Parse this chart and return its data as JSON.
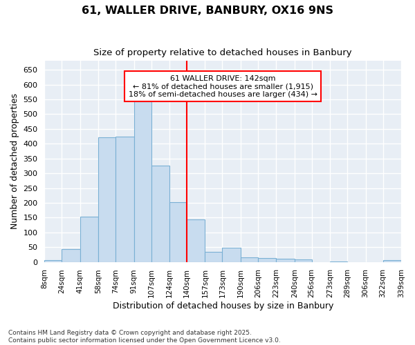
{
  "title": "61, WALLER DRIVE, BANBURY, OX16 9NS",
  "subtitle": "Size of property relative to detached houses in Banbury",
  "xlabel": "Distribution of detached houses by size in Banbury",
  "ylabel": "Number of detached properties",
  "bar_color": "#c8dcef",
  "bar_edge_color": "#7ab0d4",
  "fig_facecolor": "#ffffff",
  "ax_facecolor": "#e8eef5",
  "grid_color": "#ffffff",
  "annotation_text": "61 WALLER DRIVE: 142sqm\n← 81% of detached houses are smaller (1,915)\n18% of semi-detached houses are larger (434) →",
  "vline_x": 140,
  "bin_edges": [
    8,
    24,
    41,
    58,
    74,
    91,
    107,
    124,
    140,
    157,
    173,
    190,
    206,
    223,
    240,
    256,
    273,
    289,
    306,
    322,
    339
  ],
  "bar_heights": [
    7,
    44,
    153,
    421,
    424,
    543,
    325,
    203,
    144,
    33,
    49,
    15,
    13,
    11,
    8,
    0,
    1,
    0,
    0,
    5
  ],
  "ylim": [
    0,
    680
  ],
  "yticks": [
    0,
    50,
    100,
    150,
    200,
    250,
    300,
    350,
    400,
    450,
    500,
    550,
    600,
    650
  ],
  "footnote": "Contains HM Land Registry data © Crown copyright and database right 2025.\nContains public sector information licensed under the Open Government Licence v3.0.",
  "figsize": [
    6.0,
    5.0
  ],
  "dpi": 100
}
